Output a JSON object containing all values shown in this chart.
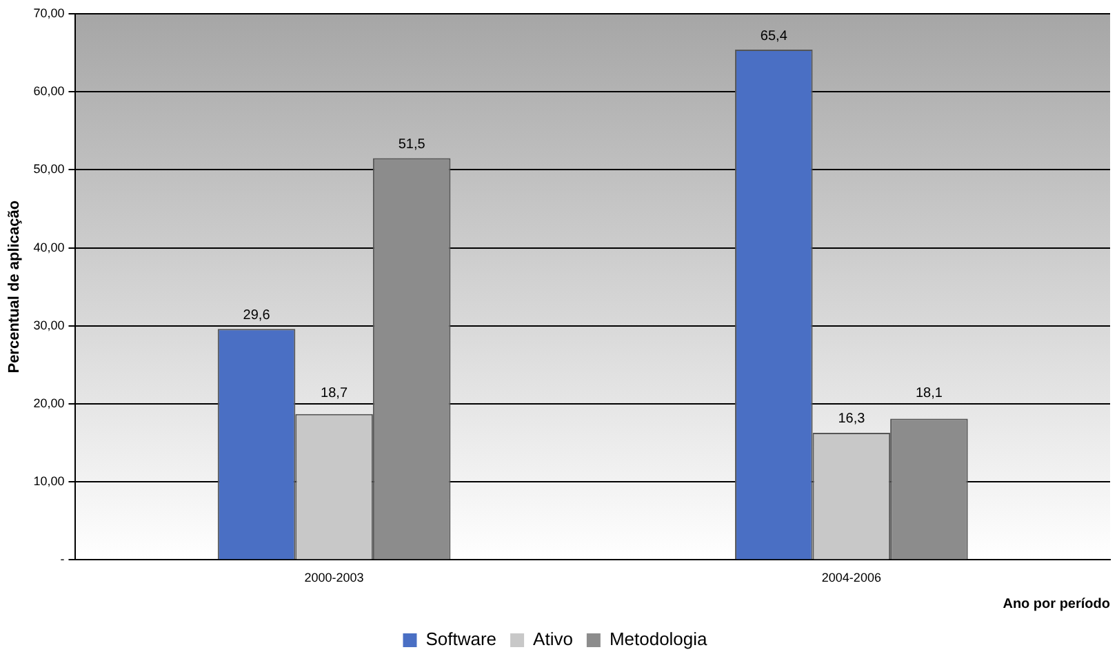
{
  "chart_data": {
    "type": "bar",
    "xlabel": "Ano por período",
    "ylabel": "Percentual de aplicação",
    "categories": [
      "2000-2003",
      "2004-2006"
    ],
    "series": [
      {
        "name": "Software",
        "color": "#4a6fc4",
        "values": [
          29.6,
          65.4
        ],
        "value_labels": [
          "29,6",
          "65,4"
        ]
      },
      {
        "name": "Ativo",
        "color": "#c8c8c8",
        "values": [
          18.7,
          16.3
        ],
        "value_labels": [
          "18,7",
          "16,3"
        ]
      },
      {
        "name": "Metodologia",
        "color": "#8c8c8c",
        "values": [
          51.5,
          18.1
        ],
        "value_labels": [
          "51,5",
          "18,1"
        ]
      }
    ],
    "ylim": [
      0,
      70
    ],
    "yticks": [
      {
        "value": 0,
        "label": "-"
      },
      {
        "value": 10,
        "label": "10,00"
      },
      {
        "value": 20,
        "label": "20,00"
      },
      {
        "value": 30,
        "label": "30,00"
      },
      {
        "value": 40,
        "label": "40,00"
      },
      {
        "value": 50,
        "label": "50,00"
      },
      {
        "value": 60,
        "label": "60,00"
      },
      {
        "value": 70,
        "label": "70,00"
      }
    ],
    "grid": "y",
    "legend": "bottom"
  }
}
